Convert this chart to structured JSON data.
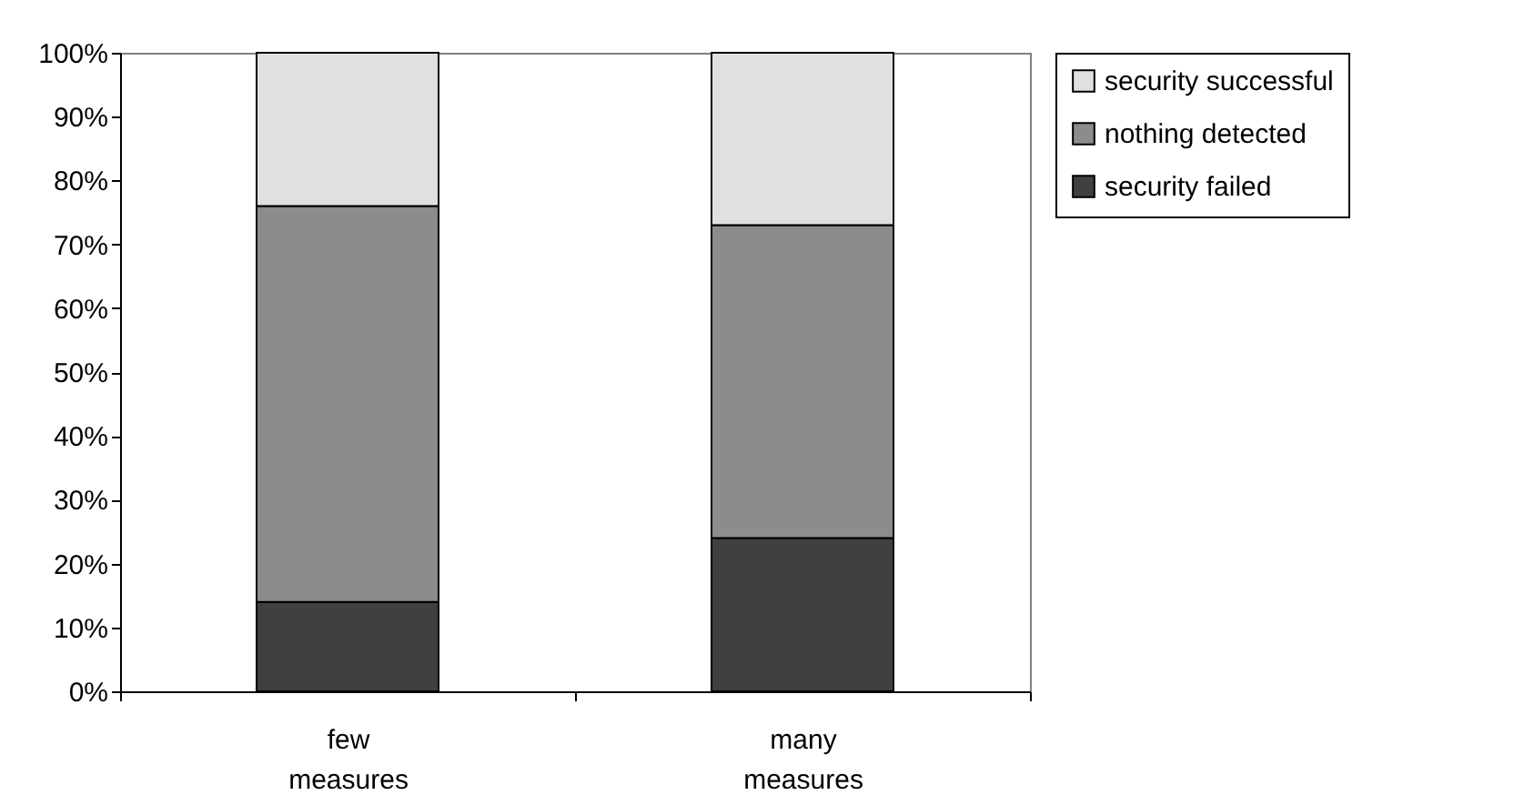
{
  "chart_data": {
    "type": "bar",
    "stacked": true,
    "categories": [
      "few measures",
      "many measures"
    ],
    "series": [
      {
        "name": "security failed",
        "color": "#404040",
        "values": [
          14,
          24
        ]
      },
      {
        "name": "nothing detected",
        "color": "#8c8c8c",
        "values": [
          62,
          49
        ]
      },
      {
        "name": "security successful",
        "color": "#e0e0e0",
        "values": [
          24,
          27
        ]
      }
    ],
    "ylim": [
      0,
      100
    ],
    "yticks": [
      {
        "value": 0,
        "label": "0%"
      },
      {
        "value": 10,
        "label": "10%"
      },
      {
        "value": 20,
        "label": "20%"
      },
      {
        "value": 30,
        "label": "30%"
      },
      {
        "value": 40,
        "label": "40%"
      },
      {
        "value": 50,
        "label": "50%"
      },
      {
        "value": 60,
        "label": "60%"
      },
      {
        "value": 70,
        "label": "70%"
      },
      {
        "value": 80,
        "label": "80%"
      },
      {
        "value": 90,
        "label": "90%"
      },
      {
        "value": 100,
        "label": "100%"
      }
    ],
    "grid": false,
    "legend": "right"
  }
}
